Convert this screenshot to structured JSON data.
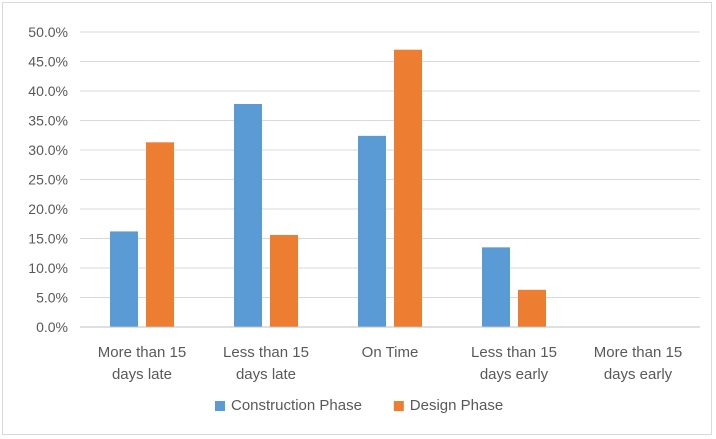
{
  "chart_data": {
    "type": "bar",
    "categories": [
      [
        "More than 15",
        "days late"
      ],
      [
        "Less than 15",
        "days late"
      ],
      [
        "On Time"
      ],
      [
        "Less than 15",
        "days early"
      ],
      [
        "More than 15",
        "days early"
      ]
    ],
    "series": [
      {
        "name": "Construction Phase",
        "color": "#5b9bd5",
        "values": [
          16.2,
          37.8,
          32.4,
          13.5,
          0.0
        ]
      },
      {
        "name": "Design Phase",
        "color": "#ed7d31",
        "values": [
          31.3,
          15.6,
          47.0,
          6.3,
          0.0
        ]
      }
    ],
    "yticks": [
      "0.0%",
      "5.0%",
      "10.0%",
      "15.0%",
      "20.0%",
      "25.0%",
      "30.0%",
      "35.0%",
      "40.0%",
      "45.0%",
      "50.0%"
    ],
    "ylim": [
      0,
      50
    ],
    "ytick_step": 5,
    "grid": true,
    "legend_position": "bottom",
    "title": "",
    "xlabel": "",
    "ylabel": ""
  }
}
